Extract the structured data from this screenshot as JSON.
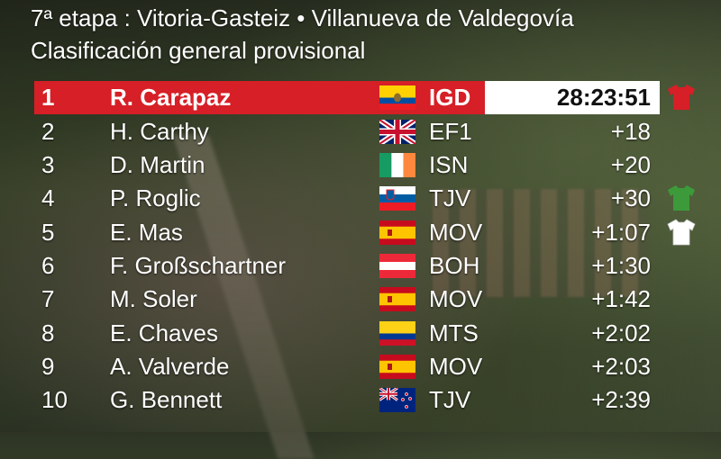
{
  "header": {
    "stage_line": "7ª etapa : Vitoria-Gasteiz • Villanueva de Valdegovía",
    "classification": "Clasificación general provisional"
  },
  "standings": [
    {
      "pos": "1",
      "name": "R. Carapaz",
      "flag": "ecuador-flag",
      "team": "IGD",
      "gap": "28:23:51",
      "jersey": "red-jersey-icon"
    },
    {
      "pos": "2",
      "name": "H. Carthy",
      "flag": "uk-flag",
      "team": "EF1",
      "gap": "+18"
    },
    {
      "pos": "3",
      "name": "D. Martin",
      "flag": "ireland-flag",
      "team": "ISN",
      "gap": "+20"
    },
    {
      "pos": "4",
      "name": "P. Roglic",
      "flag": "slovenia-flag",
      "team": "TJV",
      "gap": "+30",
      "jersey": "green-jersey-icon"
    },
    {
      "pos": "5",
      "name": "E. Mas",
      "flag": "spain-flag",
      "team": "MOV",
      "gap": "+1:07",
      "jersey": "white-jersey-icon"
    },
    {
      "pos": "6",
      "name": "F. Großschartner",
      "flag": "austria-flag",
      "team": "BOH",
      "gap": "+1:30"
    },
    {
      "pos": "7",
      "name": "M. Soler",
      "flag": "spain-flag",
      "team": "MOV",
      "gap": "+1:42"
    },
    {
      "pos": "8",
      "name": "E. Chaves",
      "flag": "colombia-flag",
      "team": "MTS",
      "gap": "+2:02"
    },
    {
      "pos": "9",
      "name": "A. Valverde",
      "flag": "spain-flag",
      "team": "MOV",
      "gap": "+2:03"
    },
    {
      "pos": "10",
      "name": "G. Bennett",
      "flag": "new-zealand-flag",
      "team": "TJV",
      "gap": "+2:39"
    }
  ],
  "colors": {
    "leader_bar": "#d61f26",
    "red_jersey": "#d61f26",
    "green_jersey": "#3d9a3a",
    "white_jersey": "#ffffff"
  }
}
